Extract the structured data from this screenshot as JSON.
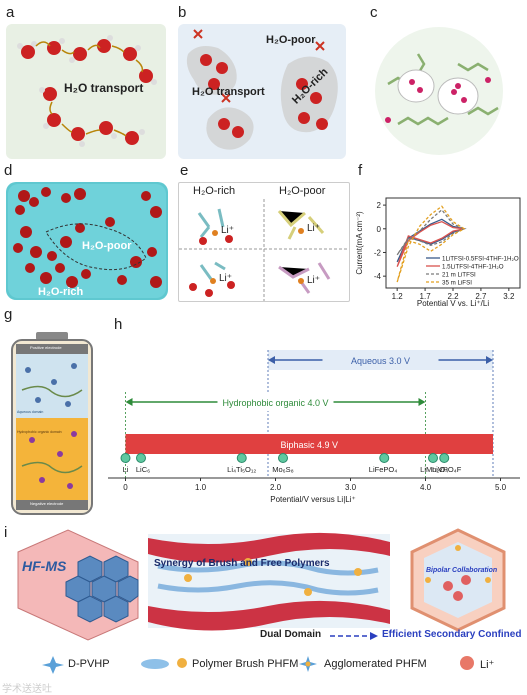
{
  "panels": {
    "a": {
      "letter": "a",
      "caption": "H₂O transport"
    },
    "b": {
      "letter": "b",
      "transport": "H₂O transport",
      "poor": "H₂O-poor",
      "rich": "H₂O-rich"
    },
    "c": {
      "letter": "c"
    },
    "d": {
      "letter": "d",
      "poor": "H₂O-poor",
      "rich": "H₂O-rich"
    },
    "e": {
      "letter": "e",
      "rich_title": "H₂O-rich",
      "poor_title": "H₂O-poor",
      "li": "Li⁺"
    },
    "f": {
      "letter": "f"
    },
    "g": {
      "letter": "g",
      "top_text": "Positive electrode",
      "bottom_text": "Negative electrode",
      "side1": "Hydrophobic organic domain",
      "side2": "Aqueous domain"
    },
    "h": {
      "letter": "h"
    },
    "i": {
      "letter": "i",
      "hfms": "HF-MS",
      "synergy": "Synergy of Brush and Free Polymers",
      "bipolar": "Bipolar Collaboration",
      "dual": "Dual Domain",
      "efficient": "Efficient Secondary Confined"
    }
  },
  "legend_i": {
    "dpvhp": "D-PVHP",
    "brush": "Polymer Brush PHFM",
    "agglom": "Agglomerated PHFM",
    "li": "Li⁺"
  },
  "watermark": "学术送送吐",
  "colors": {
    "panelA": "#e8f0e4",
    "panelB": "#e6eef6",
    "water_red": "#cc2222",
    "aqueous": "#3b5fa8",
    "organic": "#2e8b3a",
    "biphasic": "#e04040"
  },
  "chart_data": [
    {
      "type": "line",
      "panel": "f",
      "xlabel": "Potential V vs. Li⁺/Li",
      "ylabel": "Current(mA cm⁻²)",
      "xlim": [
        1.0,
        3.4
      ],
      "ylim": [
        -5,
        2.6
      ],
      "xticks": [
        "1.2",
        "1.7",
        "2.2",
        "2.7",
        "3.2"
      ],
      "yticks": [
        "2",
        "0",
        "-2",
        "-4"
      ],
      "legend_position": "bottom-right",
      "series": [
        {
          "name": "1LiTFSI-0.5FSI-4THF-1H₂O",
          "color": "#3a5a8a",
          "dash": "solid",
          "x": [
            1.2,
            1.4,
            1.6,
            1.8,
            2.0,
            2.2,
            2.4,
            2.2,
            2.0,
            1.8,
            1.6,
            1.4,
            1.2
          ],
          "y": [
            -2.8,
            -0.8,
            -0.2,
            0.4,
            0.8,
            0.2,
            0.0,
            -0.3,
            -0.9,
            -1.3,
            -1.0,
            -0.7,
            -2.8
          ]
        },
        {
          "name": "1.5LiTFSI-4THF-1H₂O",
          "color": "#d9534f",
          "dash": "solid",
          "x": [
            1.2,
            1.4,
            1.6,
            1.8,
            2.0,
            2.2,
            2.4,
            2.2,
            2.0,
            1.8,
            1.6,
            1.4,
            1.2
          ],
          "y": [
            -3.2,
            -1.0,
            -0.3,
            0.3,
            0.6,
            0.1,
            0.0,
            -0.2,
            -0.8,
            -1.2,
            -0.9,
            -0.6,
            -3.2
          ]
        },
        {
          "name": "21 m LiTFSI",
          "color": "#7a7a7a",
          "dash": "dashed",
          "x": [
            1.2,
            1.4,
            1.6,
            1.8,
            2.0,
            2.2,
            2.4,
            2.2,
            2.0,
            1.8,
            1.6,
            1.4,
            1.2
          ],
          "y": [
            -2.2,
            -0.9,
            -0.2,
            0.8,
            1.6,
            0.4,
            0.0,
            -0.4,
            -1.1,
            -1.4,
            -1.0,
            -0.8,
            -2.2
          ]
        },
        {
          "name": "35 m LiFSI",
          "color": "#e3a020",
          "dash": "dashed",
          "x": [
            1.2,
            1.4,
            1.6,
            1.8,
            2.0,
            2.2,
            2.4,
            2.2,
            2.0,
            1.8,
            1.6,
            1.4,
            1.2
          ],
          "y": [
            -4.5,
            -1.5,
            0.2,
            1.2,
            1.9,
            0.6,
            0.0,
            -0.5,
            -1.3,
            -1.9,
            -1.3,
            -1.0,
            -4.5
          ]
        }
      ]
    },
    {
      "type": "bar",
      "panel": "h",
      "xlabel": "Potential/V versus Li|Li⁺",
      "xlim": [
        -0.1,
        5.1
      ],
      "xticks": [
        "0",
        "1.0",
        "2.0",
        "3.0",
        "4.0",
        "5.0"
      ],
      "windows": [
        {
          "name": "Aqueous 3.0 V",
          "start": 1.9,
          "end": 4.9,
          "color": "#3b5fa8"
        },
        {
          "name": "Hydrophobic organic 4.0 V",
          "start": 0.0,
          "end": 4.0,
          "color": "#2e8b3a"
        },
        {
          "name": "Biphasic 4.9 V",
          "start": 0.0,
          "end": 4.9,
          "color": "#e04040"
        }
      ],
      "materials": [
        {
          "name": "Li",
          "potential": 0.0
        },
        {
          "name": "LiC₆",
          "potential": 0.1
        },
        {
          "name": "Li₄Ti₅O₁₂",
          "potential": 1.55
        },
        {
          "name": "Mo₆S₈",
          "potential": 2.1
        },
        {
          "name": "LiFePO₄",
          "potential": 3.45
        },
        {
          "name": "LiMn₂O₄",
          "potential": 4.1
        },
        {
          "name": "LiVPO₄F",
          "potential": 4.25
        }
      ]
    }
  ]
}
